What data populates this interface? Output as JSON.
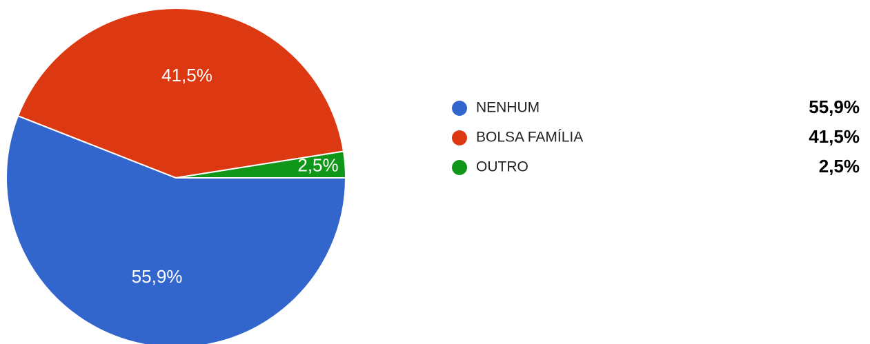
{
  "chart_data": {
    "type": "pie",
    "categories": [
      "NENHUM",
      "BOLSA FAMÍLIA",
      "OUTRO"
    ],
    "values": [
      55.9,
      41.5,
      2.5
    ],
    "value_labels": [
      "55,9%",
      "41,5%",
      "2,5%"
    ],
    "colors": [
      "#3366cc",
      "#dc3912",
      "#109618"
    ]
  }
}
